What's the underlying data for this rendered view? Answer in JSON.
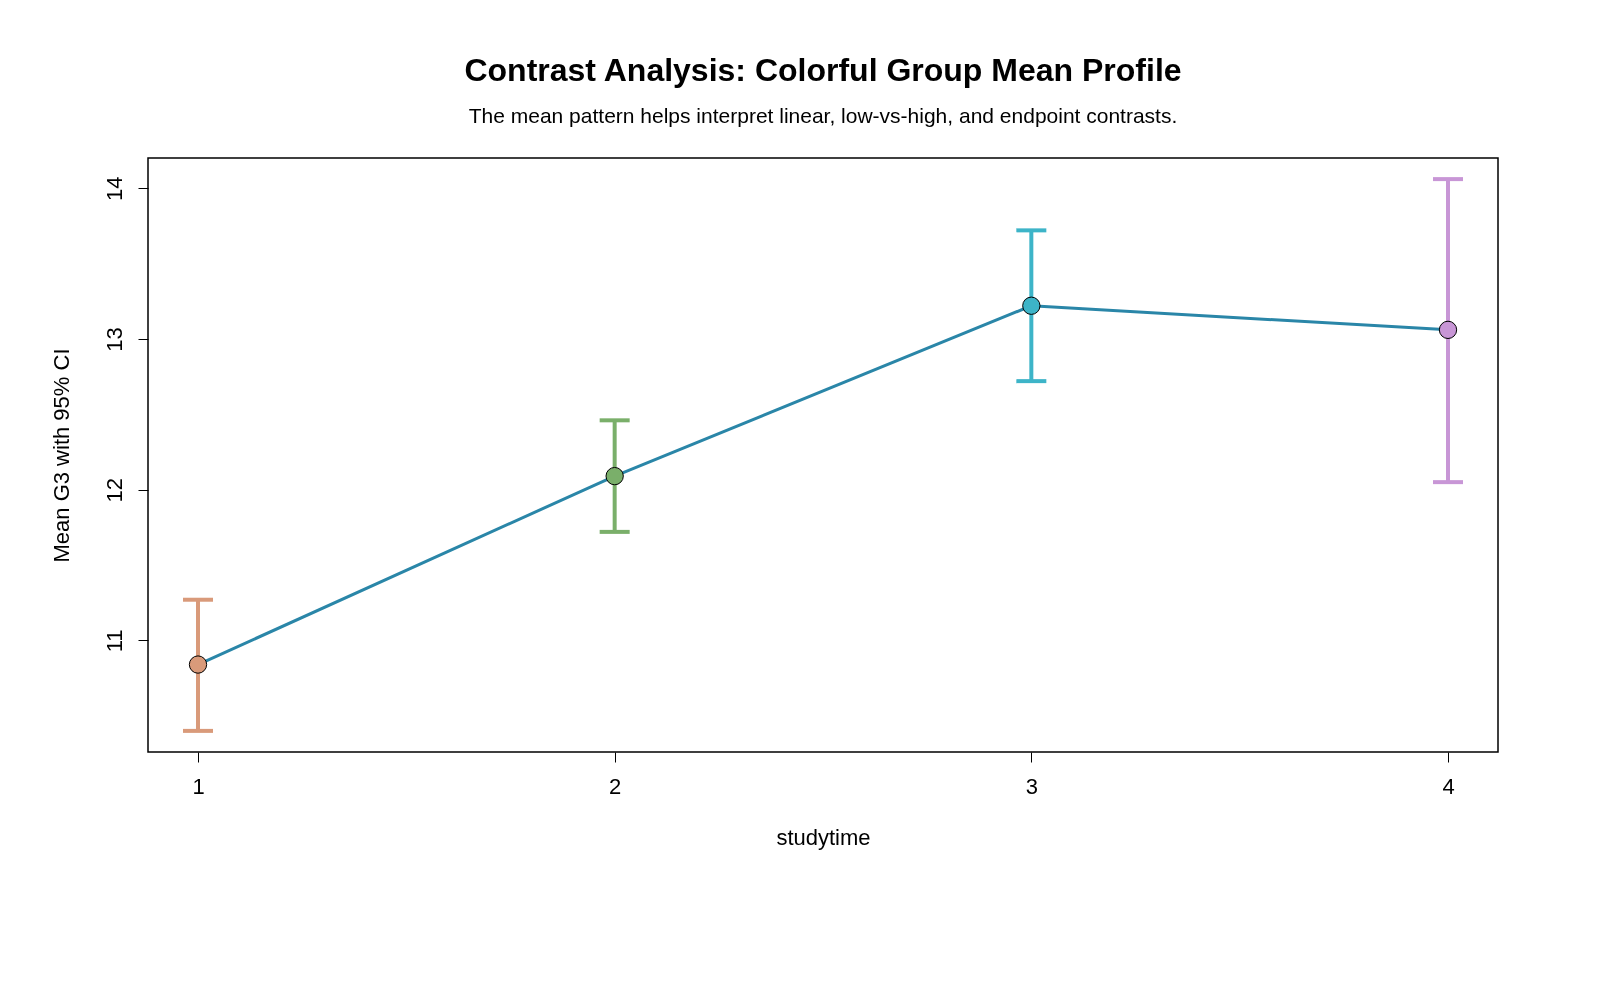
{
  "chart_data": {
    "type": "line",
    "title": "Contrast Analysis: Colorful Group Mean Profile",
    "subtitle": "The mean pattern helps interpret linear, low-vs-high, and endpoint contrasts.",
    "xlabel": "studytime",
    "ylabel": "Mean G3 with 95% CI",
    "x": [
      1,
      2,
      3,
      4
    ],
    "series": [
      {
        "color": "#2a86a8",
        "values": [
          10.84,
          12.09,
          13.22,
          13.06
        ],
        "colors": [
          "#d99a7a",
          "#7aaf6a",
          "#3db4c8",
          "#c896d6"
        ],
        "errors": [
          [
            10.4,
            11.27
          ],
          [
            11.72,
            12.46
          ],
          [
            12.72,
            13.72
          ],
          [
            12.05,
            14.06
          ]
        ]
      }
    ],
    "xlim": [
      0.88,
      4.12
    ],
    "xticks": [
      1,
      2,
      3,
      4
    ],
    "ylim": [
      10.26,
      14.2
    ],
    "yticks": [
      11,
      12,
      13,
      14
    ],
    "grid": false,
    "marker": "circle",
    "line_style": "solid"
  }
}
